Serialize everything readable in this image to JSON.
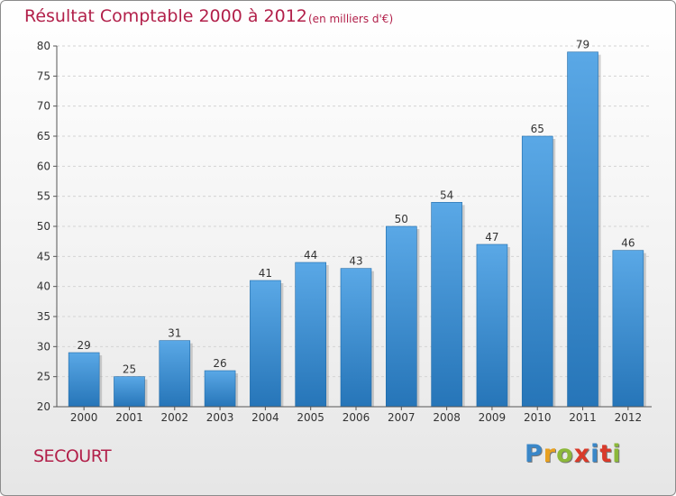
{
  "header": {
    "title": "Résultat Comptable 2000 à 2012",
    "subtitle": "(en milliers d'€)"
  },
  "footer": {
    "commune": "SECOURT",
    "logo": {
      "text": "Proxiti",
      "letter_colors": [
        "#3a87c8",
        "#e8a020",
        "#8cb83a",
        "#d93a2a",
        "#3a87c8",
        "#d93a2a",
        "#8cb83a"
      ]
    }
  },
  "colors": {
    "accent": "#b2204a",
    "bar_light": "#5aa8e6",
    "bar_dark": "#2675b8",
    "grid": "#d4d4d4",
    "axis": "#555555"
  },
  "chart_data": {
    "type": "bar",
    "title": "Résultat Comptable 2000 à 2012",
    "subtitle": "(en milliers d'€)",
    "xlabel": "",
    "ylabel": "",
    "categories": [
      "2000",
      "2001",
      "2002",
      "2003",
      "2004",
      "2005",
      "2006",
      "2007",
      "2008",
      "2009",
      "2010",
      "2011",
      "2012"
    ],
    "values": [
      29,
      25,
      31,
      26,
      41,
      44,
      43,
      50,
      54,
      47,
      65,
      79,
      46
    ],
    "ylim": [
      20,
      80
    ],
    "yticks": [
      20,
      25,
      30,
      35,
      40,
      45,
      50,
      55,
      60,
      65,
      70,
      75,
      80
    ],
    "grid": true,
    "legend": "none"
  }
}
